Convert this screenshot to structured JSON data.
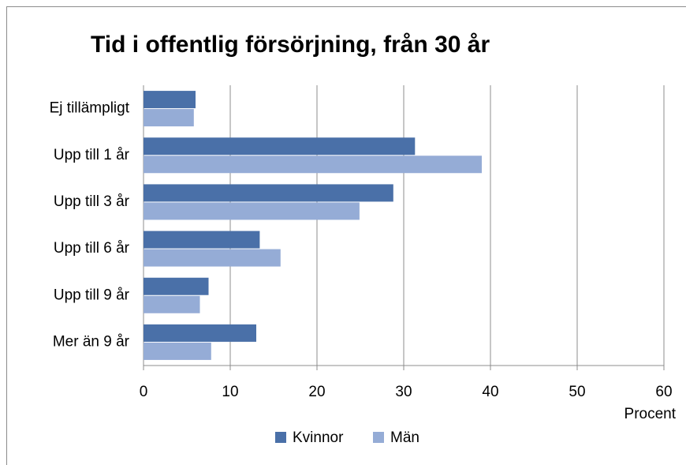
{
  "chart_data": {
    "type": "barh",
    "title": "Tid i offentlig försörjning, från 30 år",
    "x_label": "Procent",
    "categories": [
      "Ej tillämpligt",
      "Upp till 1 år",
      "Upp till 3 år",
      "Upp till 6 år",
      "Upp till 9 år",
      "Mer än 9  år"
    ],
    "series": [
      {
        "name": "Kvinnor",
        "color": "#4a70a8",
        "values": [
          6.0,
          31.3,
          28.8,
          13.4,
          7.5,
          13.0
        ]
      },
      {
        "name": "Män",
        "color": "#95acd6",
        "values": [
          5.8,
          39.0,
          24.9,
          15.8,
          6.5,
          7.8
        ]
      }
    ],
    "xlim": [
      0,
      60
    ],
    "xticks": [
      0,
      10,
      20,
      30,
      40,
      50,
      60
    ],
    "grid": true,
    "legend": "bottom"
  }
}
